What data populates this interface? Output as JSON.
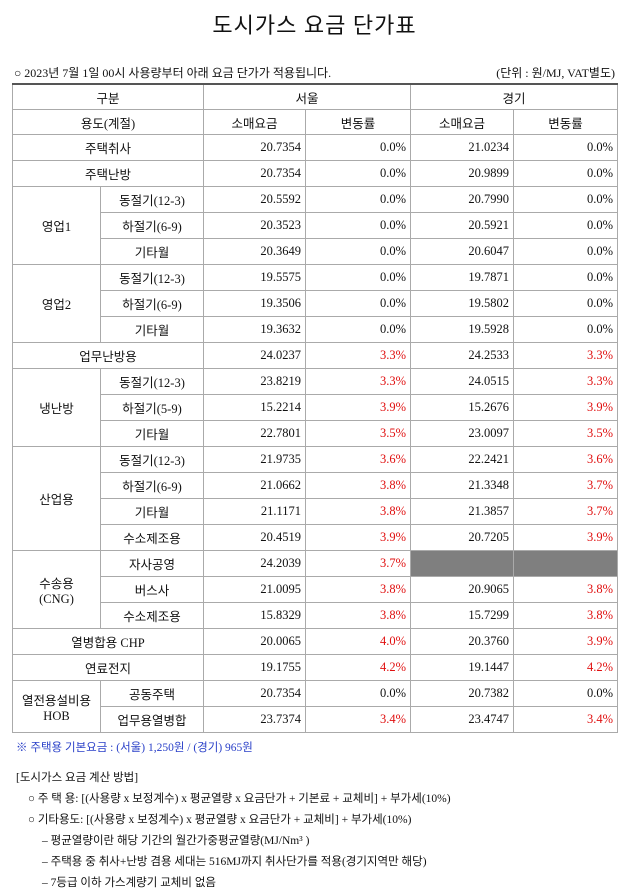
{
  "title": "도시가스 요금 단가표",
  "notice": "○ 2023년 7월 1일 00시 사용량부터 아래 요금 단가가 적용됩니다.",
  "unit": "(단위 : 원/MJ, VAT별도)",
  "table": {
    "header": {
      "category": "구분",
      "regions": [
        "서울",
        "경기"
      ],
      "usage": "용도(계절)",
      "columns": [
        "소매요금",
        "변동률",
        "소매요금",
        "변동률"
      ]
    },
    "groups": [
      {
        "label": [
          "주택취사"
        ],
        "rows": [
          {
            "cells": [
              "20.7354",
              "0.0%",
              "21.0234",
              "0.0%"
            ]
          }
        ]
      },
      {
        "label": [
          "주택난방"
        ],
        "rows": [
          {
            "cells": [
              "20.7354",
              "0.0%",
              "20.9899",
              "0.0%"
            ]
          }
        ]
      },
      {
        "label": [
          "영업1"
        ],
        "rows": [
          {
            "label": "동절기(12-3)",
            "cells": [
              "20.5592",
              "0.0%",
              "20.7990",
              "0.0%"
            ]
          },
          {
            "label": "하절기(6-9)",
            "cells": [
              "20.3523",
              "0.0%",
              "20.5921",
              "0.0%"
            ]
          },
          {
            "label": "기타월",
            "cells": [
              "20.3649",
              "0.0%",
              "20.6047",
              "0.0%"
            ]
          }
        ]
      },
      {
        "label": [
          "영업2"
        ],
        "rows": [
          {
            "label": "동절기(12-3)",
            "cells": [
              "19.5575",
              "0.0%",
              "19.7871",
              "0.0%"
            ]
          },
          {
            "label": "하절기(6-9)",
            "cells": [
              "19.3506",
              "0.0%",
              "19.5802",
              "0.0%"
            ]
          },
          {
            "label": "기타월",
            "cells": [
              "19.3632",
              "0.0%",
              "19.5928",
              "0.0%"
            ]
          }
        ]
      },
      {
        "label": [
          "업무난방용"
        ],
        "rows": [
          {
            "cells": [
              "24.0237",
              "3.3%",
              "24.2533",
              "3.3%"
            ]
          }
        ]
      },
      {
        "label": [
          "냉난방"
        ],
        "rows": [
          {
            "label": "동절기(12-3)",
            "cells": [
              "23.8219",
              "3.3%",
              "24.0515",
              "3.3%"
            ]
          },
          {
            "label": "하절기(5-9)",
            "cells": [
              "15.2214",
              "3.9%",
              "15.2676",
              "3.9%"
            ]
          },
          {
            "label": "기타월",
            "cells": [
              "22.7801",
              "3.5%",
              "23.0097",
              "3.5%"
            ]
          }
        ]
      },
      {
        "label": [
          "산업용"
        ],
        "rows": [
          {
            "label": "동절기(12-3)",
            "cells": [
              "21.9735",
              "3.6%",
              "22.2421",
              "3.6%"
            ]
          },
          {
            "label": "하절기(6-9)",
            "cells": [
              "21.0662",
              "3.8%",
              "21.3348",
              "3.7%"
            ]
          },
          {
            "label": "기타월",
            "cells": [
              "21.1171",
              "3.8%",
              "21.3857",
              "3.7%"
            ]
          },
          {
            "label": "수소제조용",
            "cells": [
              "20.4519",
              "3.9%",
              "20.7205",
              "3.9%"
            ]
          }
        ]
      },
      {
        "label": [
          "수송용",
          "(CNG)"
        ],
        "rows": [
          {
            "label": "자사공영",
            "cells": [
              "24.2039",
              "3.7%",
              null,
              null
            ]
          },
          {
            "label": "버스사",
            "cells": [
              "21.0095",
              "3.8%",
              "20.9065",
              "3.8%"
            ]
          },
          {
            "label": "수소제조용",
            "cells": [
              "15.8329",
              "3.8%",
              "15.7299",
              "3.8%"
            ]
          }
        ]
      },
      {
        "label": [
          "열병합용 CHP"
        ],
        "rows": [
          {
            "cells": [
              "20.0065",
              "4.0%",
              "20.3760",
              "3.9%"
            ]
          }
        ]
      },
      {
        "label": [
          "연료전지"
        ],
        "rows": [
          {
            "cells": [
              "19.1755",
              "4.2%",
              "19.1447",
              "4.2%"
            ]
          }
        ]
      },
      {
        "label": [
          "열전용설비용",
          "HOB"
        ],
        "rows": [
          {
            "label": "공동주택",
            "cells": [
              "20.7354",
              "0.0%",
              "20.7382",
              "0.0%"
            ]
          },
          {
            "label": "업무용열병합",
            "cells": [
              "23.7374",
              "3.4%",
              "23.4747",
              "3.4%"
            ]
          }
        ]
      }
    ]
  },
  "footnote": "※ 주택용 기본요금 : (서울) 1,250원 / (경기) 965원",
  "method": {
    "title": "[도시가스 요금 계산 방법]",
    "items": [
      "○ 주 택 용: [(사용량 x 보정계수) x 평균열량 x 요금단가 + 기본료 + 교체비] + 부가세(10%)",
      "○ 기타용도: [(사용량 x 보정계수) x 평균열량 x 요금단가 + 교체비] + 부가세(10%)"
    ],
    "notes": [
      "– 평균열량이란 해당 기간의 월간가중평균열량(MJ/Nm³ )",
      "– 주택용 중 취사+난방 겸용 세대는 516MJ까지 취사단가를 적용(경기지역만 해당)",
      "– 7등급 이하 가스계량기 교체비 없음"
    ]
  }
}
